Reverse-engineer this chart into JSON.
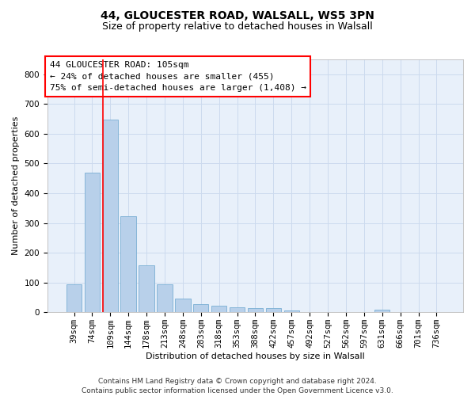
{
  "title": "44, GLOUCESTER ROAD, WALSALL, WS5 3PN",
  "subtitle": "Size of property relative to detached houses in Walsall",
  "xlabel": "Distribution of detached houses by size in Walsall",
  "ylabel": "Number of detached properties",
  "categories": [
    "39sqm",
    "74sqm",
    "109sqm",
    "144sqm",
    "178sqm",
    "213sqm",
    "248sqm",
    "283sqm",
    "318sqm",
    "353sqm",
    "388sqm",
    "422sqm",
    "457sqm",
    "492sqm",
    "527sqm",
    "562sqm",
    "597sqm",
    "631sqm",
    "666sqm",
    "701sqm",
    "736sqm"
  ],
  "values": [
    95,
    470,
    648,
    323,
    158,
    93,
    46,
    28,
    22,
    16,
    14,
    14,
    6,
    2,
    0,
    0,
    0,
    10,
    0,
    0,
    0
  ],
  "bar_color": "#b8d0ea",
  "bar_edge_color": "#7aaed4",
  "grid_color": "#ccdaee",
  "background_color": "#e8f0fa",
  "red_line_index": 2,
  "annotation_line1": "44 GLOUCESTER ROAD: 105sqm",
  "annotation_line2": "← 24% of detached houses are smaller (455)",
  "annotation_line3": "75% of semi-detached houses are larger (1,408) →",
  "footer_text": "Contains HM Land Registry data © Crown copyright and database right 2024.\nContains public sector information licensed under the Open Government Licence v3.0.",
  "ylim": [
    0,
    850
  ],
  "yticks": [
    0,
    100,
    200,
    300,
    400,
    500,
    600,
    700,
    800
  ],
  "title_fontsize": 10,
  "subtitle_fontsize": 9,
  "axis_label_fontsize": 8,
  "tick_fontsize": 7.5,
  "annotation_fontsize": 8,
  "footer_fontsize": 6.5
}
